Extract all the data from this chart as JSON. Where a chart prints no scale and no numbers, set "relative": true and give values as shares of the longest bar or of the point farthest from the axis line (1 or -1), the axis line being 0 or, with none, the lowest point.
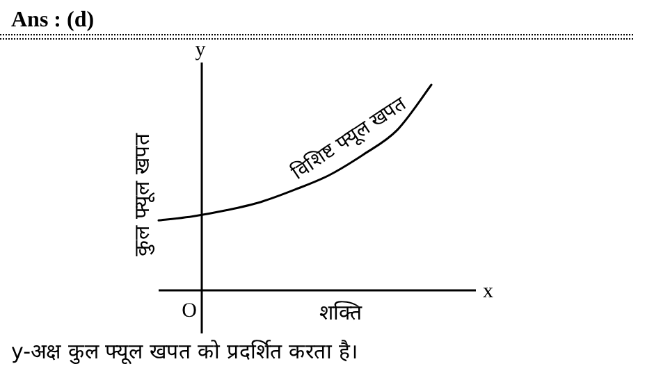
{
  "chart_data": {
    "type": "line",
    "title": "Ans : (d)",
    "xlabel": "शक्ति",
    "ylabel": "कुल फ्यूल खपत",
    "relative": true,
    "categories": [
      null,
      null,
      null,
      null,
      null,
      null,
      null,
      null,
      null
    ],
    "series": [
      {
        "name": "विशिष्ट फ्यूल खपत",
        "color": "#000000",
        "values": [
          0.34,
          0.36,
          0.39,
          0.43,
          0.49,
          0.56,
          0.66,
          0.78,
          1
        ]
      }
    ],
    "annotations": [
      "y",
      "x",
      "O",
      "y-अक्ष कुल फ्यूल खपत को प्रदर्शित करता है।"
    ]
  }
}
